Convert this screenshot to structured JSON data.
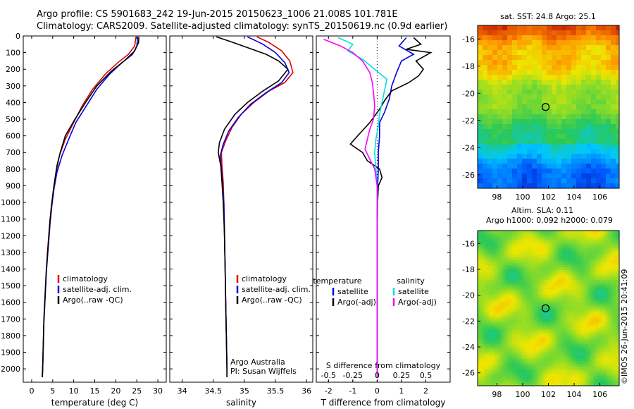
{
  "header": {
    "title_line1": "Argo profile: CS 5901683_242 19-Jun-2015 20150623_1006 21.008S 101.781E",
    "title_line2": "Climatology: CARS2009. Satellite-adjusted climatology: synTS_20150619.nc (0.9d earlier)"
  },
  "credit": "©IMOS 26-Jun-2015 20:41:09",
  "colors": {
    "climatology": "#e00000",
    "satellite": "#0000e0",
    "argo": "#000000",
    "sal_satellite": "#00e0e0",
    "sal_argo": "#ff00ff"
  },
  "chart_data": [
    {
      "id": "temperature",
      "type": "line",
      "xlabel": "temperature (deg C)",
      "ylabel": "",
      "xlim": [
        -2,
        32
      ],
      "ylim": [
        2080,
        0
      ],
      "xticks": [
        0,
        5,
        10,
        15,
        20,
        25,
        30
      ],
      "yticks": [
        0,
        100,
        200,
        300,
        400,
        500,
        600,
        700,
        800,
        900,
        1000,
        1100,
        1200,
        1300,
        1400,
        1500,
        1600,
        1700,
        1800,
        1900,
        2000
      ],
      "legend": {
        "items": [
          "climatology",
          "satellite-adj. clim.",
          "Argo(..raw -QC)"
        ],
        "position": "lower-left"
      },
      "series": [
        {
          "name": "climatology",
          "color": "#e00000",
          "points": [
            [
              24.8,
              5
            ],
            [
              24.5,
              60
            ],
            [
              23,
              110
            ],
            [
              20.5,
              160
            ],
            [
              17.5,
              230
            ],
            [
              14.5,
              320
            ],
            [
              12,
              420
            ],
            [
              10,
              520
            ],
            [
              8,
              620
            ],
            [
              6.6,
              720
            ],
            [
              5.8,
              820
            ],
            [
              5.2,
              920
            ],
            [
              4.7,
              1020
            ],
            [
              4.3,
              1120
            ],
            [
              4,
              1220
            ],
            [
              3.7,
              1320
            ],
            [
              3.5,
              1420
            ],
            [
              3.3,
              1520
            ],
            [
              3.1,
              1620
            ],
            [
              2.9,
              1720
            ],
            [
              2.8,
              1820
            ],
            [
              2.7,
              1920
            ],
            [
              2.6,
              2020
            ],
            [
              2.5,
              2050
            ]
          ]
        },
        {
          "name": "satellite-adj. clim.",
          "color": "#0000e0",
          "points": [
            [
              25.2,
              5
            ],
            [
              25,
              60
            ],
            [
              24,
              110
            ],
            [
              21.5,
              160
            ],
            [
              18.5,
              230
            ],
            [
              15.5,
              320
            ],
            [
              13,
              420
            ],
            [
              10.5,
              520
            ],
            [
              8.8,
              620
            ],
            [
              7.2,
              720
            ],
            [
              6,
              820
            ],
            [
              5.3,
              920
            ],
            [
              4.8,
              1020
            ],
            [
              4.4,
              1120
            ],
            [
              4.1,
              1220
            ],
            [
              3.8,
              1320
            ],
            [
              3.5,
              1420
            ],
            [
              3.3,
              1520
            ],
            [
              3.1,
              1620
            ],
            [
              2.9,
              1720
            ],
            [
              2.8,
              1820
            ],
            [
              2.7,
              1920
            ],
            [
              2.6,
              2020
            ],
            [
              2.5,
              2050
            ]
          ]
        },
        {
          "name": "Argo(..raw -QC)",
          "color": "#000000",
          "points": [
            [
              25.5,
              5
            ],
            [
              25.4,
              40
            ],
            [
              24.5,
              90
            ],
            [
              22,
              150
            ],
            [
              19,
              210
            ],
            [
              15.5,
              300
            ],
            [
              12.8,
              400
            ],
            [
              10.3,
              500
            ],
            [
              8,
              600
            ],
            [
              6.8,
              700
            ],
            [
              6,
              780
            ],
            [
              5.3,
              900
            ],
            [
              4.8,
              1000
            ],
            [
              4.4,
              1100
            ],
            [
              4.1,
              1200
            ],
            [
              3.8,
              1300
            ],
            [
              3.5,
              1400
            ],
            [
              3.3,
              1500
            ],
            [
              3.1,
              1600
            ],
            [
              2.9,
              1700
            ],
            [
              2.8,
              1800
            ],
            [
              2.7,
              1900
            ],
            [
              2.6,
              2000
            ],
            [
              2.5,
              2050
            ]
          ]
        }
      ]
    },
    {
      "id": "salinity",
      "type": "line",
      "xlabel": "salinity",
      "ylabel": "",
      "xlim": [
        33.8,
        36.1
      ],
      "ylim": [
        2080,
        0
      ],
      "xticks": [
        34,
        34.5,
        35,
        35.5,
        36
      ],
      "legend": {
        "items": [
          "climatology",
          "satellite-adj. clim.",
          "Argo(..raw -QC)"
        ],
        "position": "lower-right"
      },
      "annotation": [
        "Argo Australia",
        "PI: Susan Wijffels"
      ],
      "series": [
        {
          "name": "climatology",
          "color": "#e00000",
          "points": [
            [
              35.2,
              5
            ],
            [
              35.4,
              40
            ],
            [
              35.6,
              90
            ],
            [
              35.73,
              150
            ],
            [
              35.78,
              220
            ],
            [
              35.65,
              280
            ],
            [
              35.4,
              330
            ],
            [
              35.15,
              400
            ],
            [
              34.95,
              470
            ],
            [
              34.8,
              550
            ],
            [
              34.7,
              630
            ],
            [
              34.63,
              700
            ],
            [
              34.64,
              780
            ],
            [
              34.66,
              880
            ],
            [
              34.67,
              1000
            ],
            [
              34.68,
              1200
            ],
            [
              34.69,
              1400
            ],
            [
              34.7,
              1600
            ],
            [
              34.71,
              1800
            ],
            [
              34.72,
              2000
            ],
            [
              34.72,
              2050
            ]
          ]
        },
        {
          "name": "satellite-adj. clim.",
          "color": "#0000e0",
          "points": [
            [
              35.05,
              5
            ],
            [
              35.3,
              50
            ],
            [
              35.5,
              100
            ],
            [
              35.65,
              160
            ],
            [
              35.72,
              220
            ],
            [
              35.6,
              280
            ],
            [
              35.35,
              340
            ],
            [
              35.1,
              410
            ],
            [
              34.9,
              490
            ],
            [
              34.75,
              570
            ],
            [
              34.66,
              650
            ],
            [
              34.61,
              720
            ],
            [
              34.63,
              800
            ],
            [
              34.65,
              900
            ],
            [
              34.67,
              1000
            ],
            [
              34.68,
              1200
            ],
            [
              34.69,
              1400
            ],
            [
              34.7,
              1600
            ],
            [
              34.71,
              1800
            ],
            [
              34.72,
              2000
            ],
            [
              34.72,
              2050
            ]
          ]
        },
        {
          "name": "Argo(..raw -QC)",
          "color": "#000000",
          "points": [
            [
              34.55,
              5
            ],
            [
              34.75,
              30
            ],
            [
              35.05,
              70
            ],
            [
              35.35,
              110
            ],
            [
              35.55,
              150
            ],
            [
              35.7,
              200
            ],
            [
              35.55,
              270
            ],
            [
              35.3,
              330
            ],
            [
              35.05,
              400
            ],
            [
              34.85,
              470
            ],
            [
              34.68,
              560
            ],
            [
              34.6,
              640
            ],
            [
              34.58,
              700
            ],
            [
              34.62,
              780
            ],
            [
              34.64,
              880
            ],
            [
              34.66,
              1000
            ],
            [
              34.68,
              1200
            ],
            [
              34.69,
              1400
            ],
            [
              34.7,
              1600
            ],
            [
              34.71,
              1800
            ],
            [
              34.72,
              2000
            ],
            [
              34.72,
              2050
            ]
          ]
        }
      ]
    },
    {
      "id": "difference",
      "type": "line",
      "xlabel": "T difference from climatology",
      "xlabel_top": "S difference from climatology",
      "xlim": [
        -2.5,
        3
      ],
      "ylim": [
        2080,
        0
      ],
      "xticks": [
        -2,
        -1,
        0,
        1,
        2
      ],
      "s_ticks": [
        "-0.5",
        "-0.25",
        "0",
        "0.25",
        "0.5"
      ],
      "s_tick_pos": [
        -2,
        -1,
        0,
        1,
        2
      ],
      "legend": {
        "groups": [
          "temperature",
          "salinity"
        ],
        "items": [
          [
            "satellite",
            "Argo(-adj)"
          ],
          [
            "satellite",
            "Argo(-adj)"
          ]
        ],
        "position": "lower-center"
      },
      "series": [
        {
          "name": "temperature satellite",
          "color": "#0000e0",
          "points": [
            [
              1.2,
              10
            ],
            [
              0.9,
              60
            ],
            [
              1.5,
              110
            ],
            [
              1.0,
              150
            ],
            [
              0.8,
              220
            ],
            [
              0.6,
              300
            ],
            [
              0.5,
              380
            ],
            [
              0.3,
              460
            ],
            [
              0.1,
              520
            ],
            [
              0.1,
              600
            ],
            [
              0.05,
              700
            ],
            [
              0.05,
              800
            ],
            [
              0.02,
              900
            ],
            [
              0,
              1100
            ],
            [
              0,
              1400
            ],
            [
              0,
              1700
            ],
            [
              0,
              2050
            ]
          ]
        },
        {
          "name": "temperature Argo(-adj)",
          "color": "#000000",
          "points": [
            [
              1.5,
              10
            ],
            [
              1.8,
              50
            ],
            [
              1.2,
              80
            ],
            [
              2.2,
              100
            ],
            [
              1.6,
              150
            ],
            [
              1.9,
              200
            ],
            [
              1.7,
              240
            ],
            [
              1.3,
              280
            ],
            [
              0.6,
              330
            ],
            [
              0.3,
              390
            ],
            [
              0.1,
              440
            ],
            [
              -0.3,
              520
            ],
            [
              -0.8,
              600
            ],
            [
              -1.1,
              650
            ],
            [
              -0.6,
              700
            ],
            [
              -0.4,
              750
            ],
            [
              0.1,
              800
            ],
            [
              0.2,
              850
            ],
            [
              0.05,
              900
            ],
            [
              0.02,
              1000
            ],
            [
              0,
              1200
            ],
            [
              0,
              1500
            ],
            [
              0,
              1800
            ],
            [
              0,
              2050
            ]
          ]
        },
        {
          "name": "salinity satellite",
          "color": "#00e0e0",
          "points": [
            [
              -1.6,
              10
            ],
            [
              -1.0,
              50
            ],
            [
              -1.2,
              90
            ],
            [
              -0.6,
              140
            ],
            [
              -0.1,
              200
            ],
            [
              0.4,
              260
            ],
            [
              0.3,
              330
            ],
            [
              0.2,
              400
            ],
            [
              0.1,
              470
            ],
            [
              0.05,
              540
            ],
            [
              -0.05,
              620
            ],
            [
              -0.1,
              700
            ],
            [
              -0.05,
              800
            ],
            [
              0,
              900
            ],
            [
              0.02,
              1000
            ],
            [
              0,
              1200
            ],
            [
              0,
              1500
            ],
            [
              0,
              1800
            ],
            [
              0,
              2050
            ]
          ]
        },
        {
          "name": "salinity Argo(-adj)",
          "color": "#ff00ff",
          "points": [
            [
              -2.2,
              20
            ],
            [
              -1.5,
              60
            ],
            [
              -1.0,
              100
            ],
            [
              -0.6,
              150
            ],
            [
              -0.3,
              220
            ],
            [
              -0.2,
              280
            ],
            [
              -0.15,
              340
            ],
            [
              -0.1,
              420
            ],
            [
              -0.15,
              500
            ],
            [
              -0.3,
              560
            ],
            [
              -0.4,
              620
            ],
            [
              -0.5,
              680
            ],
            [
              -0.3,
              740
            ],
            [
              -0.1,
              800
            ],
            [
              0,
              900
            ],
            [
              0,
              1100
            ],
            [
              0,
              1400
            ],
            [
              0,
              1800
            ],
            [
              0,
              2050
            ]
          ]
        }
      ]
    },
    {
      "id": "sst_map",
      "type": "heatmap",
      "title": "sat. SST: 24.8 Argo: 25.1",
      "xlim": [
        96.5,
        107.5
      ],
      "ylim": [
        -27,
        -15
      ],
      "xticks": [
        98,
        100,
        102,
        104,
        106
      ],
      "yticks": [
        -16,
        -18,
        -20,
        -22,
        -24,
        -26
      ],
      "marker": {
        "lon": 101.781,
        "lat": -21.008
      }
    },
    {
      "id": "sla_map",
      "type": "heatmap",
      "title": "Altim. SLA: 0.11",
      "subtitle": "Argo h1000: 0.092 h2000: 0.079",
      "xlim": [
        96.5,
        107.5
      ],
      "ylim": [
        -27,
        -15
      ],
      "xticks": [
        98,
        100,
        102,
        104,
        106
      ],
      "yticks": [
        -16,
        -18,
        -20,
        -22,
        -24,
        -26
      ],
      "marker": {
        "lon": 101.781,
        "lat": -21.008
      }
    }
  ]
}
